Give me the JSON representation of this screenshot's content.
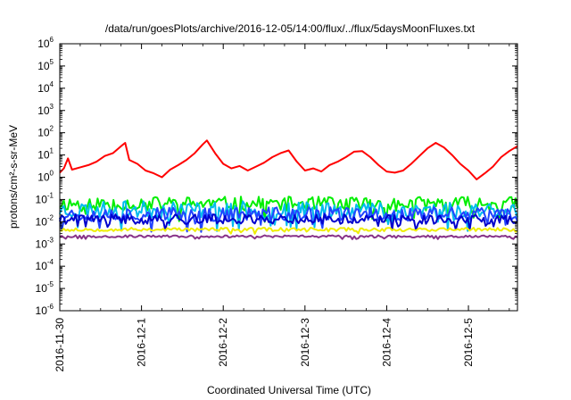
{
  "chart_data": {
    "type": "line",
    "title": "/data/run/goesPlots/archive/2016-12-05/14:00/flux/../flux/5daysMoonFluxes.txt",
    "xlabel": "Coordinated Universal Time (UTC)",
    "ylabel": "protons/cm²-s-sr-MeV",
    "y_scale": "log",
    "ylim_exponent": [
      -6,
      6
    ],
    "y_tick_base": "10",
    "y_tick_exponents": [
      "-6",
      "-5",
      "-4",
      "-3",
      "-2",
      "-1",
      "0",
      "1",
      "2",
      "3",
      "4",
      "5",
      "6"
    ],
    "x_ticks": [
      "2016-11-30",
      "2016-12-1",
      "2016-12-2",
      "2016-12-3",
      "2016-12-4",
      "2016-12-5"
    ],
    "x_range_days": [
      0,
      5.6
    ],
    "grid": false,
    "legend": "none",
    "series": [
      {
        "color": "#ff0000",
        "points": [
          [
            0.0,
            1.6
          ],
          [
            0.05,
            2.5
          ],
          [
            0.1,
            7.0
          ],
          [
            0.15,
            2.2
          ],
          [
            0.25,
            2.8
          ],
          [
            0.35,
            3.5
          ],
          [
            0.45,
            5.0
          ],
          [
            0.55,
            9.0
          ],
          [
            0.65,
            12.0
          ],
          [
            0.75,
            25.0
          ],
          [
            0.8,
            35.0
          ],
          [
            0.85,
            6.0
          ],
          [
            0.95,
            4.0
          ],
          [
            1.05,
            2.0
          ],
          [
            1.15,
            1.5
          ],
          [
            1.25,
            1.0
          ],
          [
            1.35,
            2.2
          ],
          [
            1.45,
            3.5
          ],
          [
            1.55,
            6.0
          ],
          [
            1.65,
            12.0
          ],
          [
            1.75,
            30.0
          ],
          [
            1.8,
            45.0
          ],
          [
            1.9,
            12.0
          ],
          [
            2.0,
            4.0
          ],
          [
            2.1,
            2.5
          ],
          [
            2.2,
            3.2
          ],
          [
            2.3,
            2.0
          ],
          [
            2.4,
            3.0
          ],
          [
            2.5,
            4.5
          ],
          [
            2.6,
            8.0
          ],
          [
            2.7,
            12.0
          ],
          [
            2.8,
            16.0
          ],
          [
            2.9,
            5.0
          ],
          [
            3.0,
            2.0
          ],
          [
            3.1,
            2.5
          ],
          [
            3.2,
            1.8
          ],
          [
            3.3,
            3.5
          ],
          [
            3.4,
            5.0
          ],
          [
            3.5,
            8.0
          ],
          [
            3.6,
            14.0
          ],
          [
            3.7,
            15.0
          ],
          [
            3.8,
            8.0
          ],
          [
            3.9,
            3.5
          ],
          [
            4.0,
            1.8
          ],
          [
            4.1,
            1.6
          ],
          [
            4.2,
            2.0
          ],
          [
            4.3,
            4.0
          ],
          [
            4.4,
            9.0
          ],
          [
            4.5,
            20.0
          ],
          [
            4.6,
            35.0
          ],
          [
            4.7,
            22.0
          ],
          [
            4.8,
            10.0
          ],
          [
            4.9,
            4.0
          ],
          [
            5.0,
            2.0
          ],
          [
            5.1,
            0.8
          ],
          [
            5.2,
            1.5
          ],
          [
            5.3,
            3.0
          ],
          [
            5.4,
            8.0
          ],
          [
            5.5,
            15.0
          ],
          [
            5.6,
            25.0
          ]
        ]
      },
      {
        "color": "#00ee00",
        "base": 0.065,
        "amp": 0.32,
        "seed": 11
      },
      {
        "color": "#00bbee",
        "base": 0.035,
        "amp": 0.38,
        "seed": 23
      },
      {
        "color": "#2244ff",
        "base": 0.022,
        "amp": 0.32,
        "seed": 37
      },
      {
        "color": "#0000cc",
        "base": 0.013,
        "amp": 0.22,
        "seed": 41
      },
      {
        "color": "#eeee00",
        "base": 0.0045,
        "amp": 0.08,
        "seed": 53
      },
      {
        "color": "#883388",
        "base": 0.0022,
        "amp": 0.05,
        "seed": 67
      }
    ]
  }
}
